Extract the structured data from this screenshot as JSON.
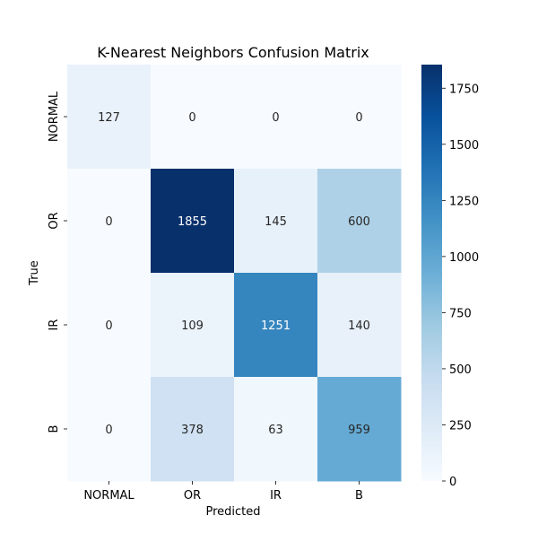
{
  "chart_data": {
    "type": "heatmap",
    "title": "K-Nearest Neighbors Confusion Matrix",
    "xlabel": "Predicted",
    "ylabel": "True",
    "x_categories": [
      "NORMAL",
      "OR",
      "IR",
      "B"
    ],
    "y_categories": [
      "NORMAL",
      "OR",
      "IR",
      "B"
    ],
    "values": [
      [
        127,
        0,
        0,
        0
      ],
      [
        0,
        1855,
        145,
        600
      ],
      [
        0,
        109,
        1251,
        140
      ],
      [
        0,
        378,
        63,
        959
      ]
    ],
    "colormap": "Blues",
    "color_range": [
      0,
      1855
    ],
    "colorbar_ticks": [
      "0",
      "250",
      "500",
      "750",
      "1000",
      "1250",
      "1500",
      "1750"
    ],
    "colorbar_tick_values": [
      0,
      250,
      500,
      750,
      1000,
      1250,
      1500,
      1750
    ],
    "annotation_colors": {
      "dark_cell_text": "#ffffff",
      "light_cell_text": "#262626"
    }
  }
}
